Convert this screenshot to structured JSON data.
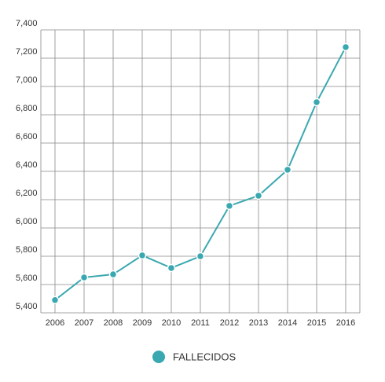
{
  "chart_data": {
    "type": "line",
    "categories": [
      "2006",
      "2007",
      "2008",
      "2009",
      "2010",
      "2011",
      "2012",
      "2013",
      "2014",
      "2015",
      "2016"
    ],
    "series": [
      {
        "name": "FALLECIDOS",
        "color": "#3aa8b0",
        "values": [
          5490,
          5650,
          5672,
          5806,
          5717,
          5800,
          6156,
          6228,
          6411,
          6889,
          7278
        ]
      }
    ],
    "ylim": [
      5400,
      7400
    ],
    "yticks": [
      {
        "value": 5400,
        "label": "5,400"
      },
      {
        "value": 5600,
        "label": "5,600"
      },
      {
        "value": 5800,
        "label": "5,800"
      },
      {
        "value": 6000,
        "label": "6,000"
      },
      {
        "value": 6200,
        "label": "6,200"
      },
      {
        "value": 6400,
        "label": "6,400"
      },
      {
        "value": 6600,
        "label": "6,600"
      },
      {
        "value": 6800,
        "label": "6,800"
      },
      {
        "value": 7000,
        "label": "7,000"
      },
      {
        "value": 7200,
        "label": "7,200"
      },
      {
        "value": 7400,
        "label": "7,400"
      }
    ],
    "grid": true
  }
}
